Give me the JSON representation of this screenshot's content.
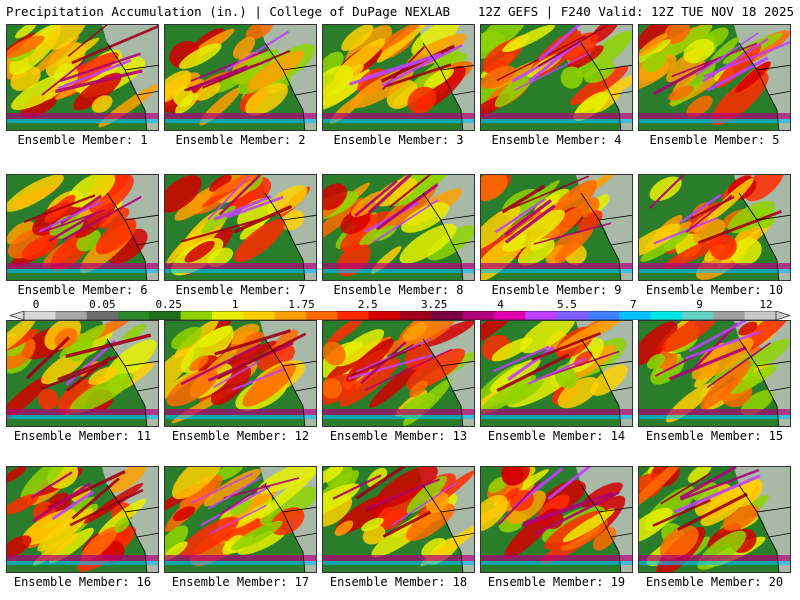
{
  "header": {
    "left": "Precipitation Accumulation (in.) | College of DuPage NEXLAB",
    "right": "12Z GEFS | F240 Valid: 12Z TUE NOV 18 2025"
  },
  "members": [
    {
      "label": "Ensemble Member: 1"
    },
    {
      "label": "Ensemble Member: 2"
    },
    {
      "label": "Ensemble Member: 3"
    },
    {
      "label": "Ensemble Member: 4"
    },
    {
      "label": "Ensemble Member: 5"
    },
    {
      "label": "Ensemble Member: 6"
    },
    {
      "label": "Ensemble Member: 7"
    },
    {
      "label": "Ensemble Member: 8"
    },
    {
      "label": "Ensemble Member: 9"
    },
    {
      "label": "Ensemble Member: 10"
    },
    {
      "label": "Ensemble Member: 11"
    },
    {
      "label": "Ensemble Member: 12"
    },
    {
      "label": "Ensemble Member: 13"
    },
    {
      "label": "Ensemble Member: 14"
    },
    {
      "label": "Ensemble Member: 15"
    },
    {
      "label": "Ensemble Member: 16"
    },
    {
      "label": "Ensemble Member: 17"
    },
    {
      "label": "Ensemble Member: 18"
    },
    {
      "label": "Ensemble Member: 19"
    },
    {
      "label": "Ensemble Member: 20"
    }
  ],
  "colorbar": {
    "ticks": [
      "0",
      "0.05",
      "0.25",
      "1",
      "1.75",
      "2.5",
      "3.25",
      "4",
      "5.5",
      "7",
      "9",
      "12"
    ],
    "colors": [
      "#d9d9d9",
      "#a6a6a6",
      "#6e6e6e",
      "#2e8b2e",
      "#1f6f1f",
      "#8fd400",
      "#e6f000",
      "#ffd000",
      "#ffa000",
      "#ff6a00",
      "#ff2a00",
      "#d40000",
      "#a0001a",
      "#7a0040",
      "#b0007a",
      "#e000b0",
      "#c040ff",
      "#8060ff",
      "#4080ff",
      "#00c0ff",
      "#00e6e6",
      "#60d0c0",
      "#a0a0a0",
      "#c8c8c8"
    ]
  },
  "map_palette": {
    "ocean": "#2a7d2a",
    "land": "#c8c8c8",
    "boundary": "#000000",
    "field_colors": [
      "#8fd400",
      "#e6f000",
      "#ffd000",
      "#ffa000",
      "#ff6a00",
      "#ff2a00",
      "#d40000",
      "#a0001a",
      "#b0007a",
      "#c040ff",
      "#4080ff",
      "#00c0ff"
    ]
  }
}
